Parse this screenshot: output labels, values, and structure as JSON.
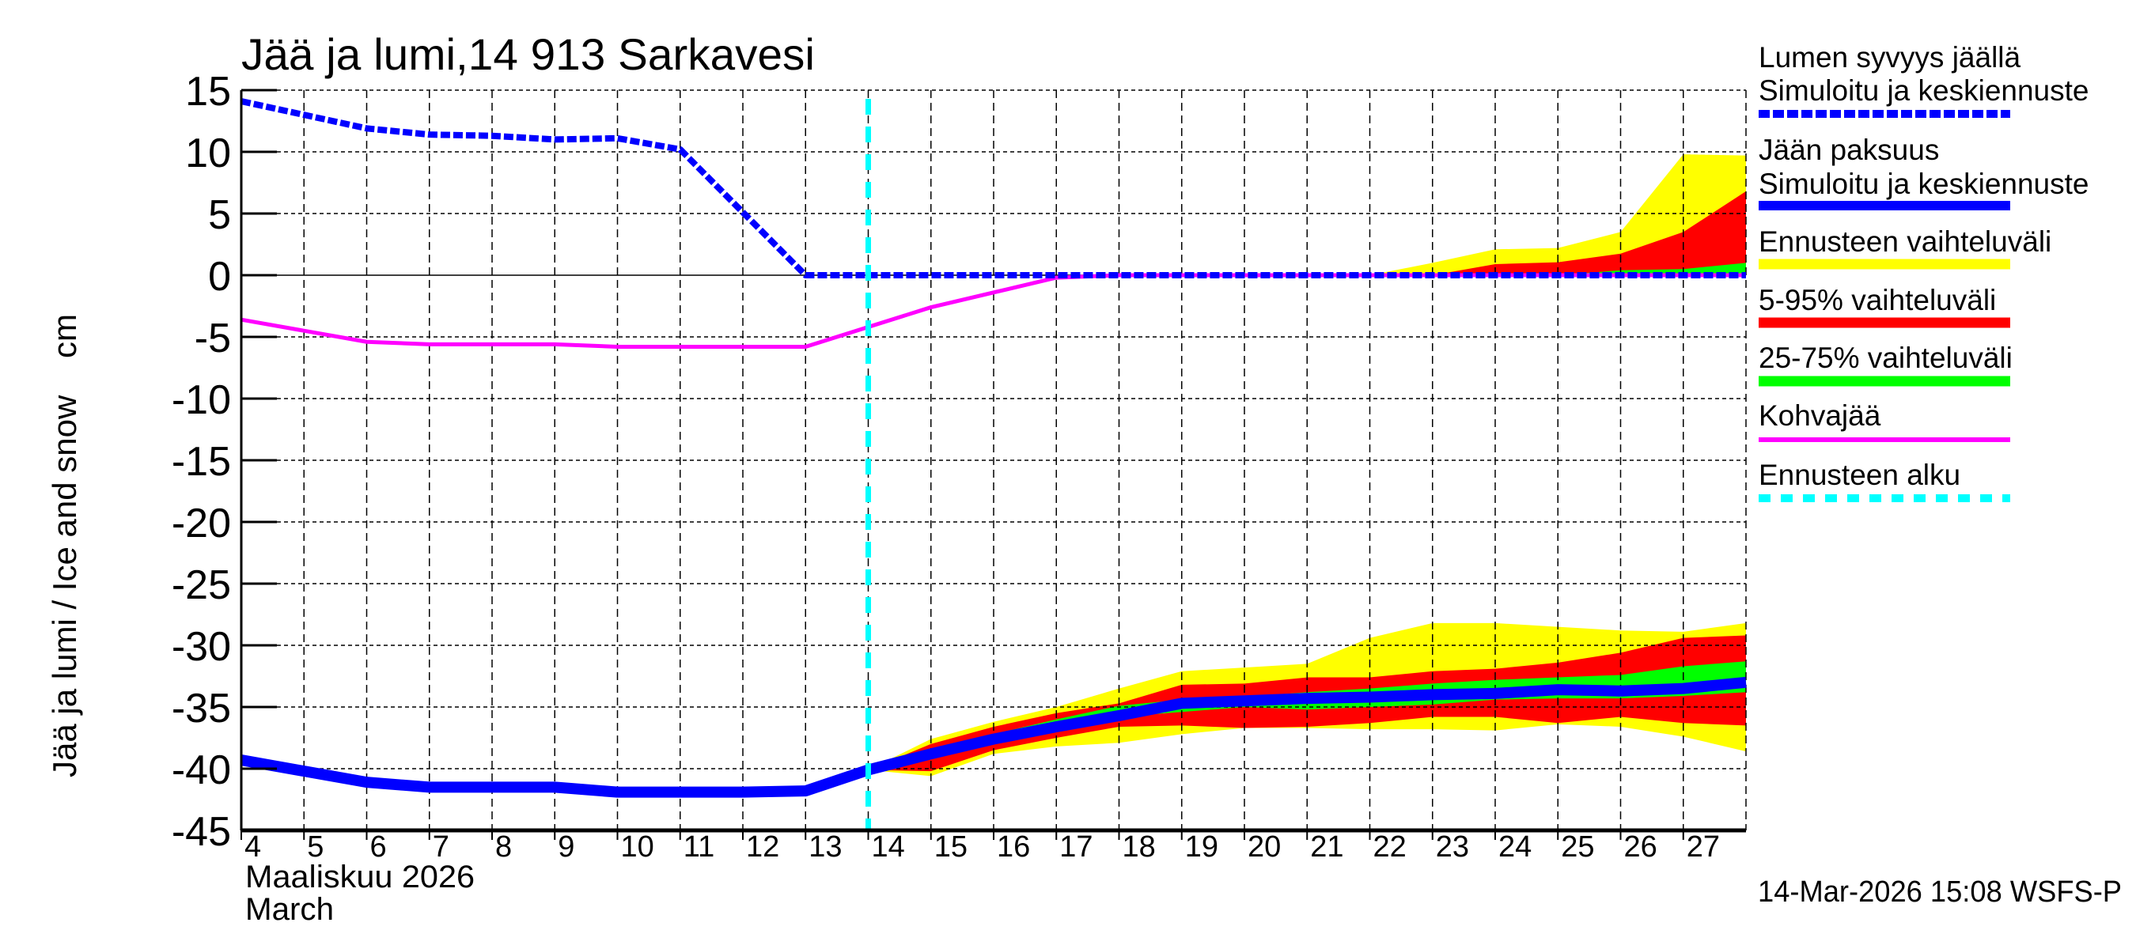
{
  "chart_data": {
    "type": "area",
    "title": "Jää ja lumi,14 913 Sarkavesi",
    "ylabel": "Jää ja lumi / Ice and snow    cm",
    "xlabel_line1": "Maaliskuu 2026",
    "xlabel_line2": "March",
    "footer": "14-Mar-2026 15:08 WSFS-P",
    "xlim": [
      4,
      28
    ],
    "ylim": [
      -45,
      15
    ],
    "yticks": [
      15,
      10,
      5,
      0,
      -5,
      -10,
      -15,
      -20,
      -25,
      -30,
      -35,
      -40,
      -45
    ],
    "xticks": [
      4,
      5,
      6,
      7,
      8,
      9,
      10,
      11,
      12,
      13,
      14,
      15,
      16,
      17,
      18,
      19,
      20,
      21,
      22,
      23,
      24,
      25,
      26,
      27
    ],
    "grid": true,
    "legend_placement": "right",
    "forecast_start": 14,
    "colors": {
      "snow": "#0000ff",
      "ice": "#0000ff",
      "range": "#ffff00",
      "p5_95": "#ff0000",
      "p25_75": "#00ff00",
      "slush": "#ff00ff",
      "forecast_start": "#00ffff"
    },
    "legend": [
      {
        "key": "snow",
        "line1": "Lumen syvyys jäällä",
        "line2": "Simuloitu ja keskiennuste",
        "style": "dashed"
      },
      {
        "key": "ice",
        "line1": "Jään paksuus",
        "line2": "Simuloitu ja keskiennuste",
        "style": "solid"
      },
      {
        "key": "range",
        "line1": "Ennusteen vaihteluväli",
        "style": "solid"
      },
      {
        "key": "p5_95",
        "line1": "5-95% vaihteluväli",
        "style": "solid"
      },
      {
        "key": "p25_75",
        "line1": "25-75% vaihteluväli",
        "style": "solid"
      },
      {
        "key": "slush",
        "line1": "Kohvajää",
        "style": "solid"
      },
      {
        "key": "forecast_start",
        "line1": "Ennusteen alku",
        "style": "dashed"
      }
    ],
    "snow_depth": {
      "x": [
        4,
        6,
        7,
        8,
        9,
        10,
        11,
        13,
        14,
        15,
        16,
        17,
        18,
        19,
        20,
        21,
        22,
        23,
        24,
        25,
        26,
        27,
        28
      ],
      "y": [
        14.1,
        11.9,
        11.4,
        11.3,
        11.0,
        11.1,
        10.2,
        0,
        0,
        0,
        0,
        0,
        0,
        0,
        0,
        0,
        0,
        0,
        0,
        0,
        0,
        0,
        0
      ]
    },
    "snow_bands": {
      "x": [
        22,
        23,
        24,
        25,
        26,
        27,
        28
      ],
      "range_upper": [
        0,
        1.0,
        2.1,
        2.2,
        3.5,
        9.8,
        9.7
      ],
      "p5_95_upper": [
        0,
        0,
        0.9,
        1.05,
        1.75,
        3.5,
        6.8
      ],
      "p25_75_upper": [
        0,
        0,
        0,
        0,
        0.4,
        0.5,
        1.0
      ],
      "lower": [
        0,
        0,
        0,
        0,
        0,
        0,
        0
      ]
    },
    "ice_thickness": {
      "x": [
        4,
        6,
        7,
        8,
        9,
        10,
        11,
        12,
        13,
        14,
        15,
        16,
        17,
        18,
        19,
        20,
        21,
        22,
        23,
        24,
        25,
        26,
        27,
        28
      ],
      "y": [
        -39.3,
        -41.1,
        -41.5,
        -41.5,
        -41.5,
        -41.9,
        -41.9,
        -41.9,
        -41.8,
        -40.1,
        -38.8,
        -37.6,
        -36.6,
        -35.7,
        -34.7,
        -34.5,
        -34.3,
        -34.2,
        -34.0,
        -33.9,
        -33.6,
        -33.7,
        -33.5,
        -33.0
      ]
    },
    "ice_bands": {
      "x": [
        14,
        15,
        16,
        17,
        18,
        19,
        20,
        21,
        22,
        23,
        24,
        25,
        26,
        27,
        28
      ],
      "range_upper": [
        -40.1,
        -37.6,
        -36.2,
        -35.0,
        -33.5,
        -32.1,
        -31.8,
        -31.5,
        -29.4,
        -28.2,
        -28.2,
        -28.5,
        -28.8,
        -28.9,
        -28.2
      ],
      "range_lower": [
        -40.1,
        -40.6,
        -38.8,
        -38.2,
        -37.9,
        -37.2,
        -36.7,
        -36.7,
        -36.8,
        -36.8,
        -36.9,
        -36.4,
        -36.6,
        -37.4,
        -38.6
      ],
      "p5_95_upper": [
        -40.1,
        -38.0,
        -36.6,
        -35.5,
        -34.7,
        -33.2,
        -33.1,
        -32.6,
        -32.6,
        -32.1,
        -31.9,
        -31.4,
        -30.6,
        -29.4,
        -29.2
      ],
      "p5_95_lower": [
        -40.1,
        -40.2,
        -38.5,
        -37.5,
        -36.6,
        -36.5,
        -36.7,
        -36.6,
        -36.3,
        -35.8,
        -35.8,
        -36.3,
        -35.8,
        -36.3,
        -36.5
      ],
      "p25_75_upper": [
        -40.1,
        -38.5,
        -37.2,
        -36.0,
        -34.9,
        -34.4,
        -34.2,
        -33.8,
        -33.5,
        -33.1,
        -32.8,
        -32.6,
        -32.4,
        -31.7,
        -31.3
      ],
      "p25_75_lower": [
        -40.1,
        -39.1,
        -38.0,
        -37.0,
        -35.8,
        -35.4,
        -35.0,
        -35.2,
        -35.0,
        -34.8,
        -34.4,
        -34.3,
        -34.3,
        -34.1,
        -33.8
      ]
    },
    "slush_ice": {
      "x": [
        4,
        6,
        7,
        8,
        9,
        10,
        11,
        12,
        13,
        14,
        15,
        16,
        17,
        18,
        28
      ],
      "y": [
        -3.6,
        -5.4,
        -5.6,
        -5.6,
        -5.6,
        -5.8,
        -5.8,
        -5.8,
        -5.8,
        -4.2,
        -2.6,
        -1.4,
        -0.2,
        0,
        0
      ]
    }
  }
}
